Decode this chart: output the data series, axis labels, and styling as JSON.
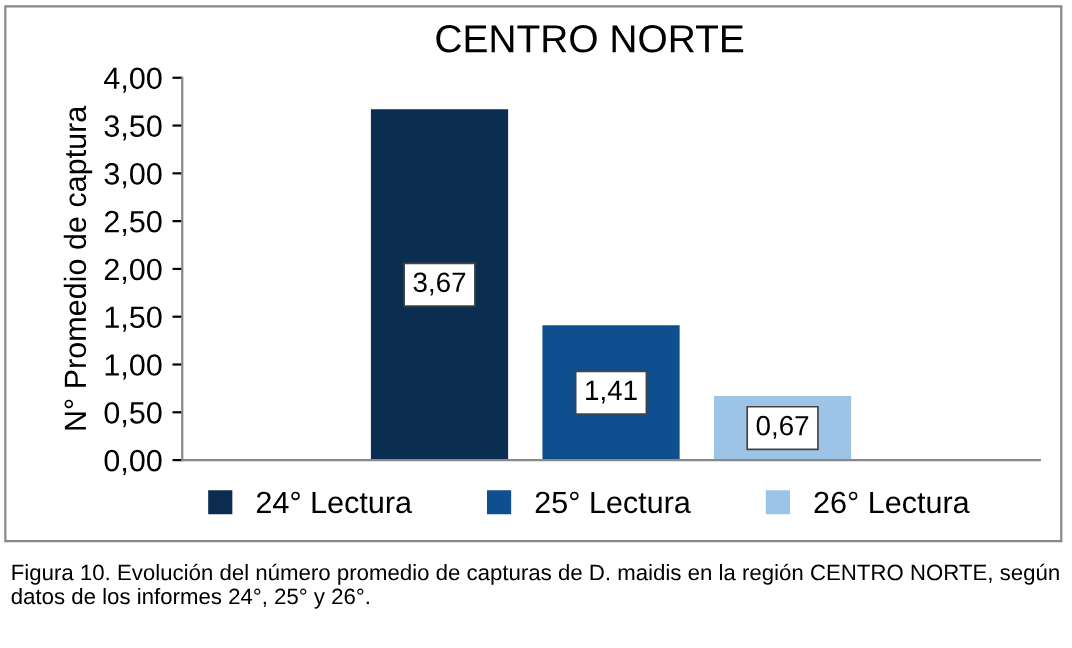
{
  "chart_data": {
    "type": "bar",
    "title": "CENTRO NORTE",
    "ylabel": "N° Promedio de captura",
    "categories": [
      null
    ],
    "series": [
      {
        "name": "24° Lectura",
        "color": "#0b2d4f",
        "values": [
          3.67
        ],
        "value_labels": [
          "3,67"
        ]
      },
      {
        "name": "25° Lectura",
        "color": "#0f4f8f",
        "values": [
          1.41
        ],
        "value_labels": [
          "1,41"
        ]
      },
      {
        "name": "26° Lectura",
        "color": "#9dc3e6",
        "values": [
          0.67
        ],
        "value_labels": [
          "0,67"
        ]
      }
    ],
    "ylim": [
      0,
      4
    ],
    "yticks": [
      {
        "value": 0,
        "label": "0,00"
      },
      {
        "value": 0.5,
        "label": "0,50"
      },
      {
        "value": 1,
        "label": "1,00"
      },
      {
        "value": 1.5,
        "label": "1,50"
      },
      {
        "value": 2,
        "label": "2,00"
      },
      {
        "value": 2.5,
        "label": "2,50"
      },
      {
        "value": 3,
        "label": "3,00"
      },
      {
        "value": 3.5,
        "label": "3,50"
      },
      {
        "value": 4,
        "label": "4,00"
      }
    ],
    "grid": false,
    "legend": "bottom",
    "annotations": [
      "Figura 10. Evolución del número promedio de capturas de D. maidis en la región CENTRO NORTE, según datos de los informes 24°, 25° y 26°."
    ]
  }
}
